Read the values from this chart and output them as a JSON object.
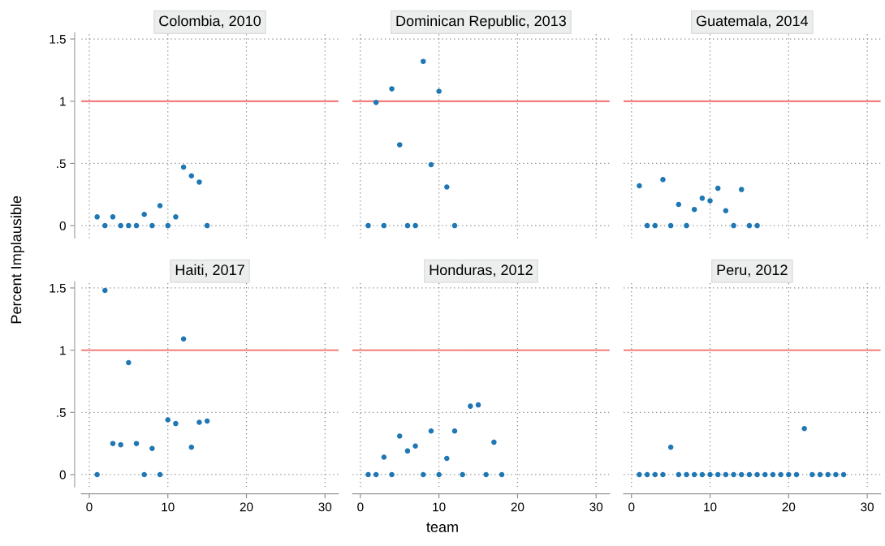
{
  "chart_data": [
    {
      "type": "scatter",
      "title": "Colombia, 2010",
      "ylabel": "Percent Implausible",
      "x": [
        1,
        2,
        3,
        4,
        5,
        6,
        7,
        8,
        9,
        10,
        11,
        12,
        13,
        14,
        15
      ],
      "series": [
        {
          "color": "#1f77b4",
          "values": [
            0.07,
            0,
            0.07,
            0,
            0,
            0,
            0.09,
            0,
            0.16,
            0,
            0.07,
            0.47,
            0.4,
            0.35,
            0
          ]
        }
      ],
      "xlim": [
        -1,
        31.7
      ],
      "ylim": [
        -0.1,
        1.55
      ],
      "xticks": [
        0,
        10,
        20,
        30
      ],
      "yticks": [
        0,
        {
          "value": 0.5,
          "label": ".5"
        },
        1,
        1.5
      ],
      "ref_lines": [
        {
          "axis": "y",
          "value": 1,
          "color": "#f26b6b"
        }
      ],
      "grid": true,
      "marker": "circle",
      "tick_labels": "y"
    },
    {
      "type": "scatter",
      "title": "Dominican Republic, 2013",
      "x": [
        1,
        2,
        3,
        4,
        5,
        6,
        7,
        8,
        9,
        10,
        11,
        12
      ],
      "series": [
        {
          "color": "#1f77b4",
          "values": [
            0,
            0.99,
            0,
            1.1,
            0.65,
            0,
            0,
            1.32,
            0.49,
            1.08,
            0.31,
            0
          ]
        }
      ],
      "xlim": [
        -1,
        31.7
      ],
      "ylim": [
        -0.1,
        1.55
      ],
      "xticks": [
        0,
        10,
        20,
        30
      ],
      "yticks": [
        0,
        0.5,
        1,
        1.5
      ],
      "ref_lines": [
        {
          "axis": "y",
          "value": 1,
          "color": "#f26b6b"
        }
      ],
      "grid": true,
      "marker": "circle",
      "tick_labels": false
    },
    {
      "type": "scatter",
      "title": "Guatemala, 2014",
      "x": [
        1,
        2,
        3,
        4,
        5,
        6,
        7,
        8,
        9,
        10,
        11,
        12,
        13,
        14,
        15,
        16
      ],
      "series": [
        {
          "color": "#1f77b4",
          "values": [
            0.32,
            0,
            0,
            0.37,
            0,
            0.17,
            0,
            0.13,
            0.22,
            0.2,
            0.3,
            0.12,
            0,
            0.29,
            0,
            0
          ]
        }
      ],
      "xlim": [
        -1,
        31.7
      ],
      "ylim": [
        -0.1,
        1.55
      ],
      "xticks": [
        0,
        10,
        20,
        30
      ],
      "yticks": [
        0,
        0.5,
        1,
        1.5
      ],
      "ref_lines": [
        {
          "axis": "y",
          "value": 1,
          "color": "#f26b6b"
        }
      ],
      "grid": true,
      "marker": "circle",
      "tick_labels": false
    },
    {
      "type": "scatter",
      "title": "Haiti, 2017",
      "x": [
        1,
        2,
        3,
        4,
        5,
        6,
        7,
        8,
        9,
        10,
        11,
        12,
        13,
        14,
        15
      ],
      "series": [
        {
          "color": "#1f77b4",
          "values": [
            0,
            1.48,
            0.25,
            0.24,
            0.9,
            0.25,
            0,
            0.21,
            0,
            0.44,
            0.41,
            1.09,
            0.22,
            0.42,
            0.43
          ]
        }
      ],
      "xlim": [
        -1,
        31.7
      ],
      "ylim": [
        -0.1,
        1.55
      ],
      "xticks": [
        0,
        10,
        20,
        30
      ],
      "yticks": [
        0,
        {
          "value": 0.5,
          "label": ".5"
        },
        1,
        1.5
      ],
      "ref_lines": [
        {
          "axis": "y",
          "value": 1,
          "color": "#f26b6b"
        }
      ],
      "grid": true,
      "marker": "circle"
    },
    {
      "type": "scatter",
      "title": "Honduras, 2012",
      "xlabel": "team",
      "x": [
        1,
        2,
        3,
        4,
        5,
        6,
        7,
        8,
        9,
        10,
        11,
        12,
        13,
        14,
        15,
        16,
        17,
        18
      ],
      "series": [
        {
          "color": "#1f77b4",
          "values": [
            0,
            0,
            0.14,
            0,
            0.31,
            0.19,
            0.23,
            0,
            0.35,
            0,
            0.13,
            0.35,
            0,
            0.55,
            0.56,
            0,
            0.26,
            0
          ]
        }
      ],
      "xlim": [
        -1,
        31.7
      ],
      "ylim": [
        -0.1,
        1.55
      ],
      "xticks": [
        0,
        10,
        20,
        30
      ],
      "yticks": [
        0,
        0.5,
        1,
        1.5
      ],
      "ref_lines": [
        {
          "axis": "y",
          "value": 1,
          "color": "#f26b6b"
        }
      ],
      "grid": true,
      "marker": "circle",
      "tick_labels": "x"
    },
    {
      "type": "scatter",
      "title": "Peru, 2012",
      "x": [
        1,
        2,
        3,
        4,
        5,
        6,
        7,
        8,
        9,
        10,
        11,
        12,
        13,
        14,
        15,
        16,
        17,
        18,
        19,
        20,
        21,
        22,
        23,
        24,
        25,
        26,
        27
      ],
      "series": [
        {
          "color": "#1f77b4",
          "values": [
            0,
            0,
            0,
            0,
            0.22,
            0,
            0,
            0,
            0,
            0,
            0,
            0,
            0,
            0,
            0,
            0,
            0,
            0,
            0,
            0,
            0,
            0.37,
            0,
            0,
            0,
            0,
            0
          ]
        }
      ],
      "xlim": [
        -1,
        31.7
      ],
      "ylim": [
        -0.1,
        1.55
      ],
      "xticks": [
        0,
        10,
        20,
        30
      ],
      "yticks": [
        0,
        0.5,
        1,
        1.5
      ],
      "ref_lines": [
        {
          "axis": "y",
          "value": 1,
          "color": "#f26b6b"
        }
      ],
      "grid": true,
      "marker": "circle",
      "tick_labels": "x"
    }
  ]
}
